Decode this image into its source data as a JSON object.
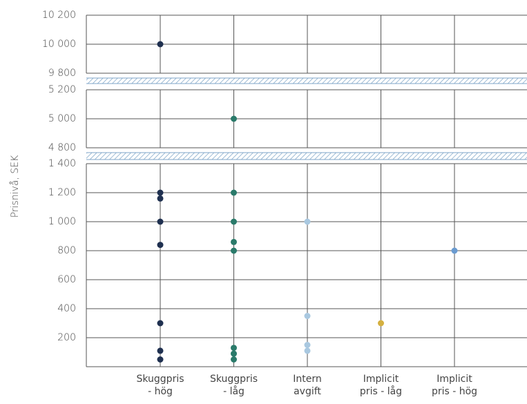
{
  "chart_data": {
    "type": "strip",
    "ylabel": "Prisnivå, SEK",
    "categories": [
      "Skuggpris\n- hög",
      "Skuggpris\n- låg",
      "Intern\navgift",
      "Implicit\npris - låg",
      "Implicit\npris - hög"
    ],
    "colors": [
      "#1f3050",
      "#2a7a6a",
      "#a9c8e0",
      "#d4b040",
      "#6a9bd0"
    ],
    "values": [
      [
        10000,
        1200,
        1160,
        1000,
        840,
        300,
        110,
        50
      ],
      [
        5000,
        1200,
        1000,
        860,
        800,
        130,
        90,
        50
      ],
      [
        1000,
        350,
        150,
        110
      ],
      [
        300
      ],
      [
        800
      ]
    ],
    "grid": true,
    "panels": [
      {
        "ylim": [
          9800,
          10200
        ],
        "yticks": [
          {
            "value": 9800,
            "label": "9 800"
          },
          {
            "value": 10000,
            "label": "10 000"
          },
          {
            "value": 10200,
            "label": "10 200"
          }
        ]
      },
      {
        "ylim": [
          4800,
          5200
        ],
        "yticks": [
          {
            "value": 4800,
            "label": "4 800"
          },
          {
            "value": 5000,
            "label": "5 000"
          },
          {
            "value": 5200,
            "label": "5 200"
          }
        ]
      },
      {
        "ylim": [
          0,
          1400
        ],
        "yticks": [
          200,
          400,
          600,
          800,
          {
            "value": 1000,
            "label": "1 000"
          },
          {
            "value": 1200,
            "label": "1 200"
          },
          {
            "value": 1400,
            "label": "1 400"
          }
        ]
      }
    ]
  }
}
